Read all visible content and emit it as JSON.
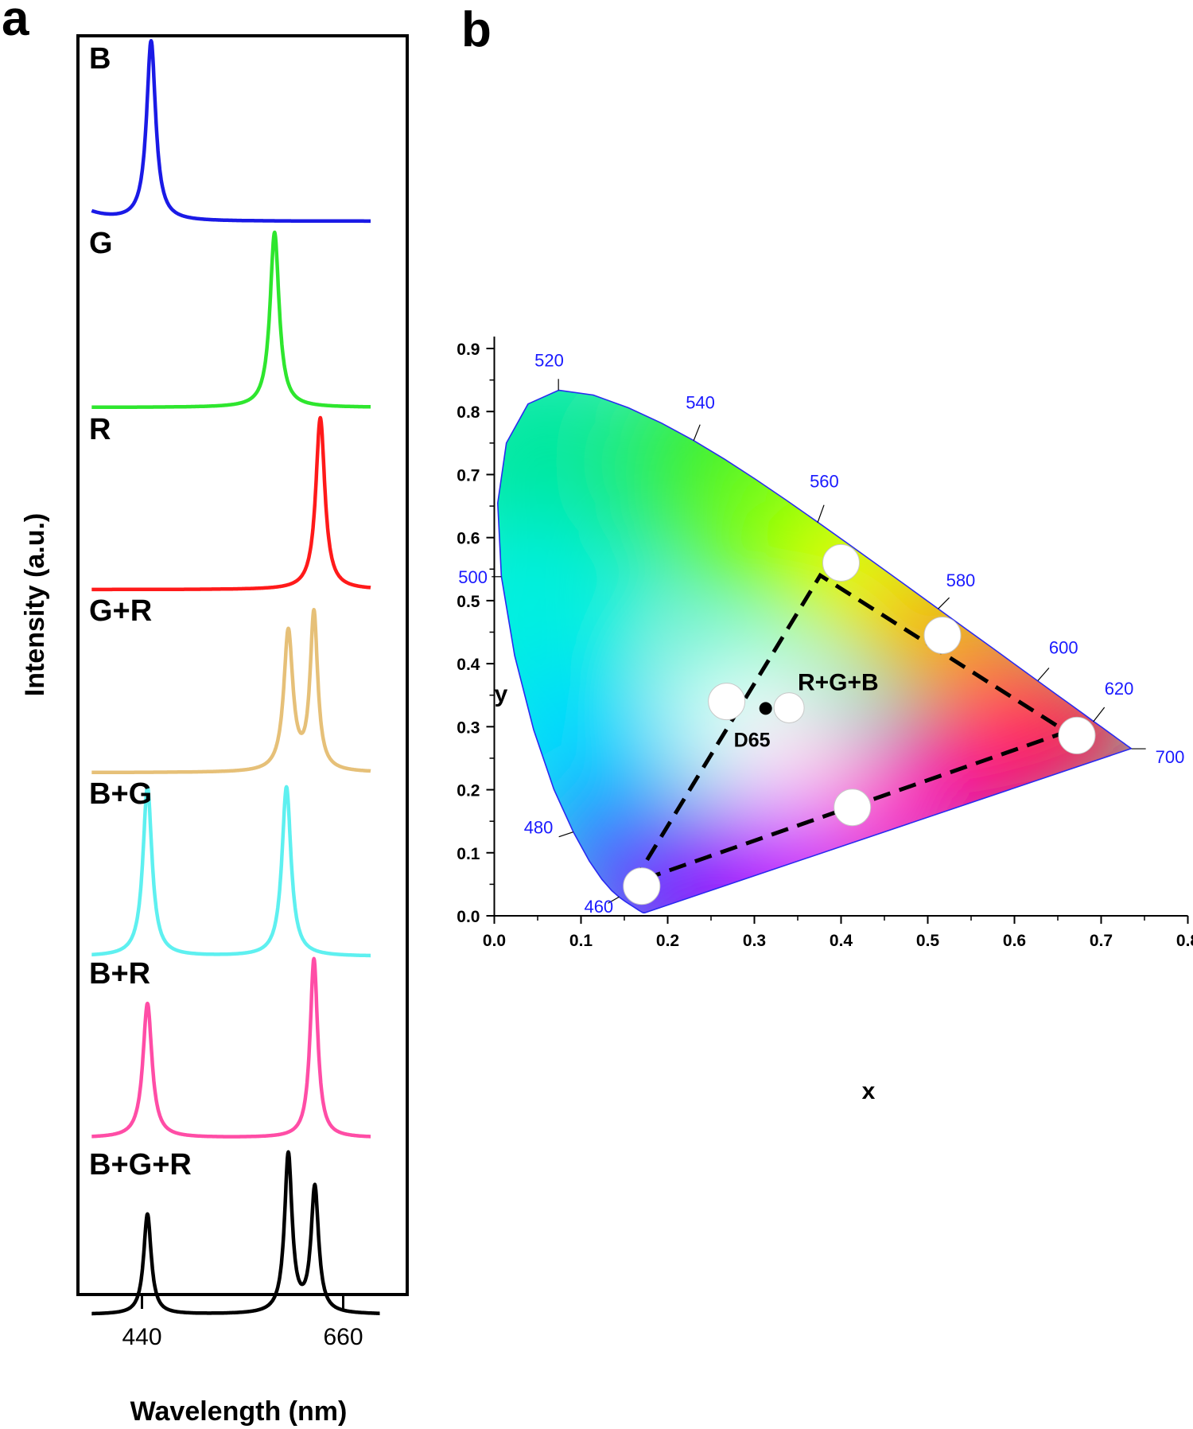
{
  "panel_labels": {
    "a": "a",
    "b": "b"
  },
  "chart_data": [
    {
      "type": "line",
      "panel": "a",
      "xlabel": "Wavelength (nm)",
      "ylabel": "Intensity (a.u.)",
      "xticks": [
        440,
        660
      ],
      "xlim": [
        370,
        730
      ],
      "series": [
        {
          "name": "B",
          "color": "#1a1ae6",
          "peaks": [
            {
              "center": 450,
              "height": 1.0,
              "width": 6
            }
          ],
          "baseline_start": 0.05,
          "baseline_end": 0.0,
          "x_end": 690
        },
        {
          "name": "G",
          "color": "#2ee62e",
          "peaks": [
            {
              "center": 585,
              "height": 1.0,
              "width": 6
            }
          ],
          "baseline_start": 0.0,
          "baseline_end": 0.0,
          "x_end": 690
        },
        {
          "name": "R",
          "color": "#ff1a1a",
          "peaks": [
            {
              "center": 635,
              "height": 1.0,
              "width": 6
            }
          ],
          "baseline_start": 0.0,
          "baseline_end": 0.0,
          "x_end": 690
        },
        {
          "name": "G+R",
          "color": "#e6c078",
          "peaks": [
            {
              "center": 600,
              "height": 0.8,
              "width": 6
            },
            {
              "center": 628,
              "height": 0.9,
              "width": 5
            }
          ],
          "baseline_start": 0.0,
          "baseline_end": 0.0,
          "x_end": 690
        },
        {
          "name": "B+G",
          "color": "#5ef0f0",
          "peaks": [
            {
              "center": 446,
              "height": 0.95,
              "width": 6
            },
            {
              "center": 598,
              "height": 0.95,
              "width": 6
            }
          ],
          "baseline_start": 0.0,
          "baseline_end": 0.0,
          "x_end": 690
        },
        {
          "name": "B+R",
          "color": "#ff4da6",
          "peaks": [
            {
              "center": 446,
              "height": 0.75,
              "width": 6
            },
            {
              "center": 628,
              "height": 1.0,
              "width": 5
            }
          ],
          "baseline_start": 0.0,
          "baseline_end": 0.0,
          "x_end": 690
        },
        {
          "name": "B+G+R",
          "color": "#000000",
          "peaks": [
            {
              "center": 446,
              "height": 0.6,
              "width": 5
            },
            {
              "center": 600,
              "height": 0.95,
              "width": 5
            },
            {
              "center": 629,
              "height": 0.75,
              "width": 5
            }
          ],
          "baseline_start": 0.0,
          "baseline_end": 0.0,
          "x_end": 700
        }
      ]
    },
    {
      "type": "scatter",
      "panel": "b",
      "xlabel": "x",
      "ylabel": "y",
      "xlim": [
        0.0,
        0.8
      ],
      "ylim": [
        0.0,
        0.9
      ],
      "xticks": [
        "0.0",
        "0.1",
        "0.2",
        "0.3",
        "0.4",
        "0.5",
        "0.6",
        "0.7",
        "0.8"
      ],
      "yticks": [
        "0.0",
        "0.1",
        "0.2",
        "0.3",
        "0.4",
        "0.5",
        "0.6",
        "0.7",
        "0.8",
        "0.9"
      ],
      "spectral_locus": [
        [
          0.1741,
          0.005
        ],
        [
          0.1738,
          0.0049
        ],
        [
          0.1736,
          0.0049
        ],
        [
          0.1733,
          0.0048
        ],
        [
          0.173,
          0.0048
        ],
        [
          0.1726,
          0.0048
        ],
        [
          0.1721,
          0.0048
        ],
        [
          0.1714,
          0.0051
        ],
        [
          0.1703,
          0.0058
        ],
        [
          0.1689,
          0.0069
        ],
        [
          0.1669,
          0.0086
        ],
        [
          0.1644,
          0.0109
        ],
        [
          0.1611,
          0.0138
        ],
        [
          0.1566,
          0.0177
        ],
        [
          0.151,
          0.0227
        ],
        [
          0.144,
          0.0297
        ],
        [
          0.1355,
          0.0399
        ],
        [
          0.1241,
          0.0578
        ],
        [
          0.1096,
          0.0868
        ],
        [
          0.0913,
          0.1327
        ],
        [
          0.0687,
          0.2007
        ],
        [
          0.0454,
          0.295
        ],
        [
          0.0235,
          0.4127
        ],
        [
          0.0082,
          0.5384
        ],
        [
          0.0039,
          0.6548
        ],
        [
          0.0139,
          0.7502
        ],
        [
          0.0389,
          0.812
        ],
        [
          0.0743,
          0.8338
        ],
        [
          0.1142,
          0.8262
        ],
        [
          0.1547,
          0.8059
        ],
        [
          0.1929,
          0.7816
        ],
        [
          0.2296,
          0.7543
        ],
        [
          0.2658,
          0.7243
        ],
        [
          0.3016,
          0.6923
        ],
        [
          0.3373,
          0.6589
        ],
        [
          0.3731,
          0.6245
        ],
        [
          0.4087,
          0.5896
        ],
        [
          0.4441,
          0.5547
        ],
        [
          0.4788,
          0.5202
        ],
        [
          0.5125,
          0.4866
        ],
        [
          0.5448,
          0.4544
        ],
        [
          0.5752,
          0.4242
        ],
        [
          0.6029,
          0.3965
        ],
        [
          0.627,
          0.3725
        ],
        [
          0.6482,
          0.3514
        ],
        [
          0.6658,
          0.334
        ],
        [
          0.6801,
          0.3197
        ],
        [
          0.6915,
          0.3083
        ],
        [
          0.7006,
          0.2993
        ],
        [
          0.7079,
          0.292
        ],
        [
          0.714,
          0.2859
        ],
        [
          0.719,
          0.2809
        ],
        [
          0.723,
          0.277
        ],
        [
          0.726,
          0.274
        ],
        [
          0.7283,
          0.2717
        ],
        [
          0.73,
          0.27
        ],
        [
          0.7311,
          0.2689
        ],
        [
          0.732,
          0.268
        ],
        [
          0.7327,
          0.2673
        ],
        [
          0.7334,
          0.2666
        ],
        [
          0.734,
          0.266
        ],
        [
          0.7344,
          0.2656
        ],
        [
          0.7346,
          0.2654
        ],
        [
          0.7347,
          0.2653
        ]
      ],
      "wavelength_labels": [
        {
          "text": "460",
          "x": 0.144,
          "y": 0.03
        },
        {
          "text": "480",
          "x": 0.091,
          "y": 0.133
        },
        {
          "text": "500",
          "x": 0.008,
          "y": 0.538
        },
        {
          "text": "520",
          "x": 0.074,
          "y": 0.834
        },
        {
          "text": "540",
          "x": 0.23,
          "y": 0.754
        },
        {
          "text": "560",
          "x": 0.373,
          "y": 0.624
        },
        {
          "text": "580",
          "x": 0.512,
          "y": 0.487
        },
        {
          "text": "600",
          "x": 0.627,
          "y": 0.373
        },
        {
          "text": "620",
          "x": 0.691,
          "y": 0.308
        },
        {
          "text": "700",
          "x": 0.735,
          "y": 0.265
        }
      ],
      "points": [
        {
          "x": 0.17,
          "y": 0.047
        },
        {
          "x": 0.268,
          "y": 0.34
        },
        {
          "x": 0.34,
          "y": 0.33
        },
        {
          "x": 0.4,
          "y": 0.56
        },
        {
          "x": 0.517,
          "y": 0.445
        },
        {
          "x": 0.672,
          "y": 0.286
        },
        {
          "x": 0.413,
          "y": 0.172
        }
      ],
      "triangle": [
        [
          0.16,
          0.052
        ],
        [
          0.376,
          0.54
        ],
        [
          0.66,
          0.292
        ]
      ],
      "white_point": {
        "label": "D65",
        "x": 0.313,
        "y": 0.329
      },
      "annotations": [
        {
          "text": "R+G+B"
        }
      ]
    }
  ]
}
